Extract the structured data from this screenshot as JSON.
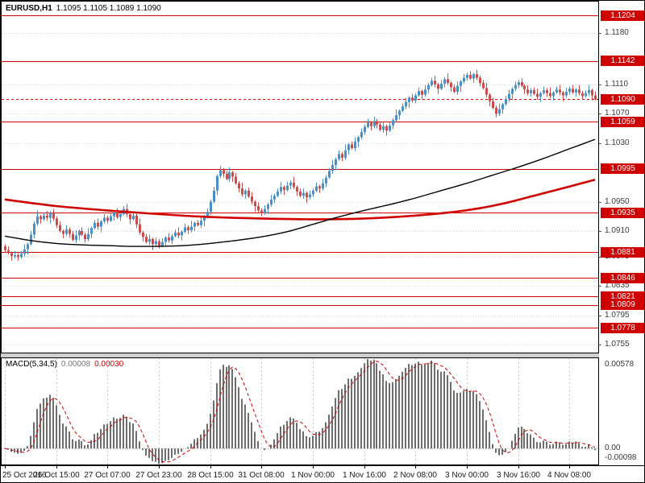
{
  "chart": {
    "symbol_label": "EURUSD,H1",
    "ohlc_label": "1.1095 1.1105 1.1089 1.1090"
  },
  "macd_panel": {
    "name_label": "MACD(5,34,5)",
    "main_value": "0.00008",
    "signal_value": "0.00030",
    "axis_top": "0.00578",
    "axis_zero": "0.00",
    "axis_bottom": "-0.00098"
  },
  "colors": {
    "bull": "#4a90c8",
    "bear": "#d04a4a",
    "sr_line": "#d10000",
    "flag_bg": "#d10000",
    "flag_text": "#ffffff",
    "ma_black": "#000000",
    "ma_red": "#d10000",
    "macd_hist": "#6e6e6e",
    "macd_signal": "#d10000",
    "grid": "#d4d4d4",
    "axis_text": "#3a3a3a",
    "frame": "#000000"
  },
  "chart_data": {
    "type": "candlestick",
    "title": "EURUSD,H1",
    "symbol": "EURUSD",
    "timeframe": "H1",
    "price_axis": {
      "max": 1.1224,
      "min": 1.0743,
      "grid_labels": [
        "1.1180",
        "1.1110",
        "1.1070",
        "1.1030",
        "1.0950",
        "1.0910",
        "1.0875",
        "1.0835",
        "1.0795",
        "1.0755"
      ]
    },
    "x_ticks": {
      "indices": [
        0,
        16,
        32,
        48,
        64,
        80,
        96,
        112,
        128,
        144,
        160,
        176
      ],
      "labels": [
        "25 Oct 2016",
        "26 Oct 15:00",
        "27 Oct 07:00",
        "27 Oct 23:00",
        "28 Oct 15:00",
        "31 Oct 08:00",
        "1 Nov 00:00",
        "1 Nov 16:00",
        "2 Nov 08:00",
        "3 Nov 00:00",
        "3 Nov 16:00",
        "4 Nov 08:00"
      ]
    },
    "first_open": 1.0889,
    "closes": [
      1.0884,
      1.088,
      1.08755,
      1.0877,
      1.08745,
      1.0879,
      1.0885,
      1.0892,
      1.0905,
      1.092,
      1.093,
      1.0926,
      1.0931,
      1.0928,
      1.0935,
      1.0927,
      1.0918,
      1.091,
      1.0906,
      1.0912,
      1.0906,
      1.0898,
      1.0904,
      1.091,
      1.0905,
      1.0899,
      1.0906,
      1.0914,
      1.0921,
      1.0916,
      1.0923,
      1.0928,
      1.0924,
      1.093,
      1.0935,
      1.0929,
      1.0933,
      1.094,
      1.0933,
      1.0926,
      1.0931,
      1.0919,
      1.0908,
      1.0902,
      1.0895,
      1.0899,
      1.0892,
      1.0896,
      1.089,
      1.0895,
      1.0901,
      1.0897,
      1.0903,
      1.0908,
      1.0904,
      1.0909,
      1.0915,
      1.0911,
      1.0916,
      1.0921,
      1.0918,
      1.0924,
      1.093,
      1.0936,
      1.095,
      1.0965,
      1.0985,
      1.0993,
      1.0988,
      1.0981,
      1.099,
      1.0984,
      1.0975,
      1.0968,
      1.096,
      1.0965,
      1.0957,
      1.095,
      1.0944,
      1.0938,
      1.0934,
      1.094,
      1.0946,
      1.0953,
      1.0958,
      1.0964,
      1.097,
      1.0966,
      1.0972,
      1.0976,
      1.097,
      1.0964,
      1.0958,
      1.0962,
      1.0956,
      1.096,
      1.0965,
      1.0971,
      1.0968,
      1.0975,
      1.0983,
      1.0992,
      1.1,
      1.1008,
      1.1015,
      1.101,
      1.102,
      1.1028,
      1.1023,
      1.1032,
      1.1038,
      1.1045,
      1.1052,
      1.1058,
      1.1053,
      1.106,
      1.1055,
      1.1048,
      1.1053,
      1.1047,
      1.1054,
      1.1061,
      1.1068,
      1.1074,
      1.108,
      1.1086,
      1.1092,
      1.1088,
      1.1095,
      1.1101,
      1.1096,
      1.1103,
      1.1109,
      1.1115,
      1.111,
      1.1104,
      1.1111,
      1.1117,
      1.1112,
      1.1106,
      1.11,
      1.1108,
      1.1114,
      1.1119,
      1.1123,
      1.1118,
      1.1124,
      1.1119,
      1.1112,
      1.1105,
      1.1096,
      1.1087,
      1.1078,
      1.107,
      1.1076,
      1.1083,
      1.109,
      1.1097,
      1.1104,
      1.1109,
      1.1113,
      1.1108,
      1.1103,
      1.1098,
      1.1102,
      1.1097,
      1.1093,
      1.1098,
      1.1102,
      1.1098,
      1.1094,
      1.1099,
      1.1103,
      1.1099,
      1.1095,
      1.11,
      1.1104,
      1.1099,
      1.1103,
      1.1098,
      1.1094,
      1.1098,
      1.1102,
      1.1095,
      1.109
    ],
    "wick_high_pips": [
      3,
      5,
      2,
      6,
      3,
      4,
      7,
      2,
      5,
      3,
      8,
      2,
      4,
      6,
      2,
      5
    ],
    "wick_low_pips": [
      4,
      2,
      6,
      3,
      5,
      2,
      4,
      7,
      2,
      5,
      3,
      6,
      2,
      4,
      8,
      3
    ],
    "sr_levels": [
      "1.1204",
      "1.1142",
      "1.1059",
      "1.0995",
      "1.0935",
      "1.0881",
      "1.0846",
      "1.0821",
      "1.0809",
      "1.0778"
    ],
    "current_price": "1.1090",
    "ma_black_anchors": {
      "idx": [
        0,
        8,
        16,
        24,
        32,
        40,
        48,
        56,
        64,
        72,
        80,
        88,
        96,
        104,
        112,
        120,
        128,
        136,
        144,
        152,
        160,
        168,
        176,
        184
      ],
      "price": [
        1.0903,
        1.0897,
        1.0893,
        1.0891,
        1.089,
        1.0889,
        1.0889,
        1.089,
        1.0893,
        1.0897,
        1.0902,
        1.0909,
        1.0919,
        1.0929,
        1.0938,
        1.0946,
        1.0955,
        1.0965,
        1.0975,
        1.0986,
        1.0997,
        1.1009,
        1.1022,
        1.1035
      ]
    },
    "ma_red_anchors": {
      "idx": [
        0,
        16,
        32,
        48,
        64,
        80,
        96,
        112,
        128,
        140,
        148,
        156,
        164,
        172,
        178,
        184
      ],
      "price": [
        1.0953,
        1.0944,
        1.0938,
        1.0933,
        1.0929,
        1.0927,
        1.0926,
        1.0927,
        1.0931,
        1.0936,
        1.0941,
        1.0948,
        1.0957,
        1.0966,
        1.0973,
        1.098
      ]
    },
    "macd": {
      "fast": 5,
      "slow": 34,
      "signal_period": 5,
      "axis_max": 0.00578,
      "axis_min": -0.00098
    }
  }
}
